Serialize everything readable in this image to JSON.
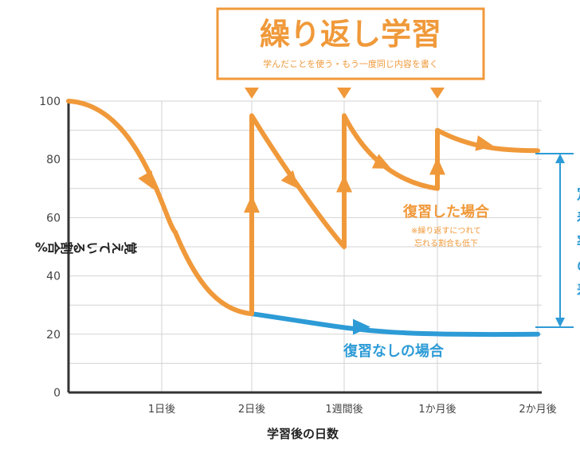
{
  "chart_data": {
    "type": "line",
    "title": "繰り返し学習",
    "subtitle": "学んだことを使う・もう一度同じ内容を書く",
    "xlabel": "学習後の日数",
    "ylabel": "覚えている割合%",
    "ylim": [
      0,
      100
    ],
    "yticks": [
      "100",
      "80",
      "60",
      "40",
      "20",
      "0"
    ],
    "x_tick_labels": [
      "1日後",
      "2日後",
      "1週間後",
      "1か月後",
      "2か月後"
    ],
    "grid": true,
    "colors": {
      "with_review": "#f0993a",
      "without_review": "#2d9bd6",
      "axis": "#333333"
    },
    "series": [
      {
        "name": "復習した場合",
        "points": [
          {
            "x": "start",
            "y": 100
          },
          {
            "x": "2日後",
            "y": 27
          },
          {
            "x": "2日後",
            "y": 95
          },
          {
            "x": "1週間後",
            "y": 50
          },
          {
            "x": "1週間後",
            "y": 95
          },
          {
            "x": "1か月後",
            "y": 70
          },
          {
            "x": "1か月後",
            "y": 90
          },
          {
            "x": "2か月後",
            "y": 83
          }
        ]
      },
      {
        "name": "復習なしの場合",
        "points": [
          {
            "x": "2日後",
            "y": 27
          },
          {
            "x": "2か月後",
            "y": 20
          }
        ]
      }
    ],
    "review_markers": [
      "2日後",
      "1週間後",
      "1か月後"
    ],
    "annotations": {
      "with_review_label": "復習した場合",
      "with_review_note_1": "※繰り返すにつれて",
      "with_review_note_2": "忘れる割合も低下",
      "without_review_label": "復習なしの場合",
      "right_label_partial": [
        "定",
        "着",
        "率",
        "の",
        "差"
      ]
    }
  }
}
